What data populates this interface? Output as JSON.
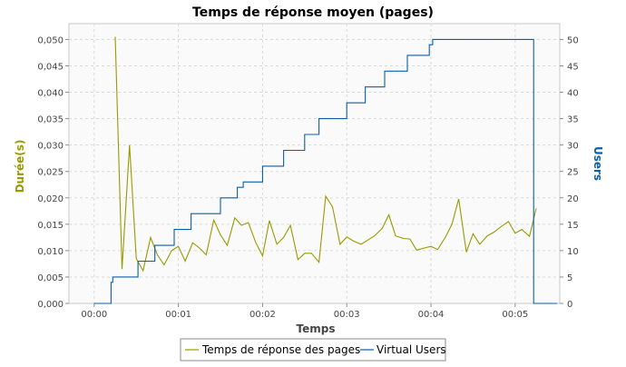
{
  "chart_data": {
    "type": "line",
    "title": "Temps de réponse moyen (pages)",
    "xlabel": "Temps",
    "ylabel_left": "Durée(s)",
    "ylabel_right": "Users",
    "x_unit": "minutes",
    "xlim": [
      -0.3,
      5.53
    ],
    "ylim_left": [
      0,
      0.053
    ],
    "ylim_right": [
      0,
      53
    ],
    "x_ticks": [
      {
        "value": 0,
        "label": "00:00"
      },
      {
        "value": 1,
        "label": "00:01"
      },
      {
        "value": 2,
        "label": "00:02"
      },
      {
        "value": 3,
        "label": "00:03"
      },
      {
        "value": 4,
        "label": "00:04"
      },
      {
        "value": 5,
        "label": "00:05"
      }
    ],
    "y_ticks_left": [
      {
        "value": 0,
        "label": "0,000"
      },
      {
        "value": 0.005,
        "label": "0,005"
      },
      {
        "value": 0.01,
        "label": "0,010"
      },
      {
        "value": 0.015,
        "label": "0,015"
      },
      {
        "value": 0.02,
        "label": "0,020"
      },
      {
        "value": 0.025,
        "label": "0,025"
      },
      {
        "value": 0.03,
        "label": "0,030"
      },
      {
        "value": 0.035,
        "label": "0,035"
      },
      {
        "value": 0.04,
        "label": "0,040"
      },
      {
        "value": 0.045,
        "label": "0,045"
      },
      {
        "value": 0.05,
        "label": "0,050"
      }
    ],
    "y_ticks_right": [
      {
        "value": 0,
        "label": "0"
      },
      {
        "value": 5,
        "label": "5"
      },
      {
        "value": 10,
        "label": "10"
      },
      {
        "value": 15,
        "label": "15"
      },
      {
        "value": 20,
        "label": "20"
      },
      {
        "value": 25,
        "label": "25"
      },
      {
        "value": 30,
        "label": "30"
      },
      {
        "value": 35,
        "label": "35"
      },
      {
        "value": 40,
        "label": "40"
      },
      {
        "value": 45,
        "label": "45"
      },
      {
        "value": 50,
        "label": "50"
      }
    ],
    "grid": true,
    "legend_position": "bottom",
    "series": [
      {
        "name": "Temps de réponse des pages",
        "axis": "left",
        "color": "#999900",
        "x": [
          0.25,
          0.33,
          0.42,
          0.5,
          0.58,
          0.67,
          0.75,
          0.83,
          0.92,
          1.0,
          1.08,
          1.17,
          1.25,
          1.33,
          1.42,
          1.5,
          1.58,
          1.67,
          1.75,
          1.83,
          1.92,
          2.0,
          2.08,
          2.17,
          2.25,
          2.33,
          2.42,
          2.5,
          2.58,
          2.67,
          2.75,
          2.83,
          2.92,
          3.0,
          3.08,
          3.17,
          3.25,
          3.33,
          3.42,
          3.5,
          3.58,
          3.67,
          3.75,
          3.83,
          3.92,
          4.0,
          4.08,
          4.17,
          4.25,
          4.33,
          4.42,
          4.5,
          4.58,
          4.67,
          4.75,
          4.83,
          4.92,
          5.0,
          5.08,
          5.17,
          5.25
        ],
        "values": [
          0.0505,
          0.0065,
          0.03,
          0.0085,
          0.0062,
          0.0125,
          0.0092,
          0.0073,
          0.01,
          0.0108,
          0.008,
          0.0115,
          0.0105,
          0.0092,
          0.0158,
          0.013,
          0.011,
          0.0162,
          0.0148,
          0.0153,
          0.0115,
          0.009,
          0.0157,
          0.0112,
          0.0125,
          0.0148,
          0.0083,
          0.0095,
          0.0095,
          0.0078,
          0.0203,
          0.0183,
          0.0112,
          0.0126,
          0.0118,
          0.0112,
          0.012,
          0.0128,
          0.0142,
          0.0168,
          0.0128,
          0.0123,
          0.0122,
          0.0101,
          0.0105,
          0.0108,
          0.0102,
          0.0125,
          0.015,
          0.0198,
          0.0097,
          0.0132,
          0.0112,
          0.0128,
          0.0135,
          0.0145,
          0.0155,
          0.0133,
          0.014,
          0.0127,
          0.018
        ]
      },
      {
        "name": "Virtual Users",
        "axis": "right",
        "color": "#0c5ea5",
        "step": true,
        "x": [
          0.0,
          0.2,
          0.22,
          0.47,
          0.52,
          0.68,
          0.72,
          0.9,
          0.95,
          1.12,
          1.15,
          1.45,
          1.5,
          1.68,
          1.7,
          1.73,
          1.77,
          1.95,
          2.0,
          2.2,
          2.25,
          2.45,
          2.5,
          2.63,
          2.67,
          2.72,
          2.75,
          2.95,
          3.0,
          3.18,
          3.22,
          3.42,
          3.45,
          3.68,
          3.72,
          3.95,
          3.98,
          4.02,
          4.05,
          5.2,
          5.22,
          5.5
        ],
        "values": [
          0,
          4,
          5,
          5,
          8,
          8,
          11,
          11,
          14,
          14,
          17,
          17,
          20,
          20,
          22,
          22,
          23,
          23,
          26,
          26,
          29,
          29,
          32,
          32,
          35,
          35,
          35,
          35,
          38,
          38,
          41,
          41,
          44,
          44,
          47,
          47,
          49,
          50,
          50,
          50,
          0,
          0
        ]
      }
    ]
  }
}
